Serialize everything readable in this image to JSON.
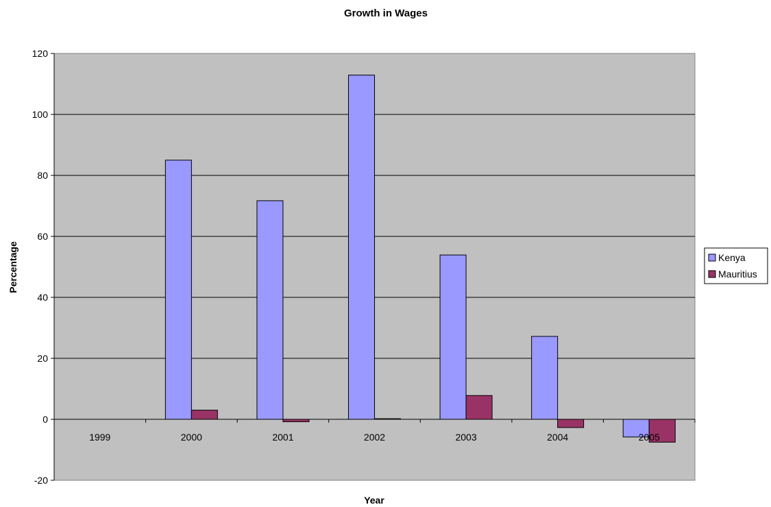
{
  "chart_data": {
    "type": "bar",
    "title": "Growth in Wages",
    "xlabel": "Year",
    "ylabel": "Percentage",
    "categories": [
      "1999",
      "2000",
      "2001",
      "2002",
      "2003",
      "2004",
      "2005"
    ],
    "series": [
      {
        "name": "Kenya",
        "color": "#9999ff",
        "values": [
          0,
          85,
          71.7,
          112.9,
          53.9,
          27.2,
          -5.8
        ]
      },
      {
        "name": "Mauritius",
        "color": "#993366",
        "values": [
          0,
          3,
          -0.8,
          0.2,
          7.8,
          -2.7,
          -7.5
        ]
      }
    ],
    "ylim": [
      -20,
      120
    ],
    "yticks": [
      -20,
      0,
      20,
      40,
      60,
      80,
      100,
      120
    ],
    "grid": true,
    "legend_position": "right",
    "plot_background": "#c0c0c0"
  }
}
